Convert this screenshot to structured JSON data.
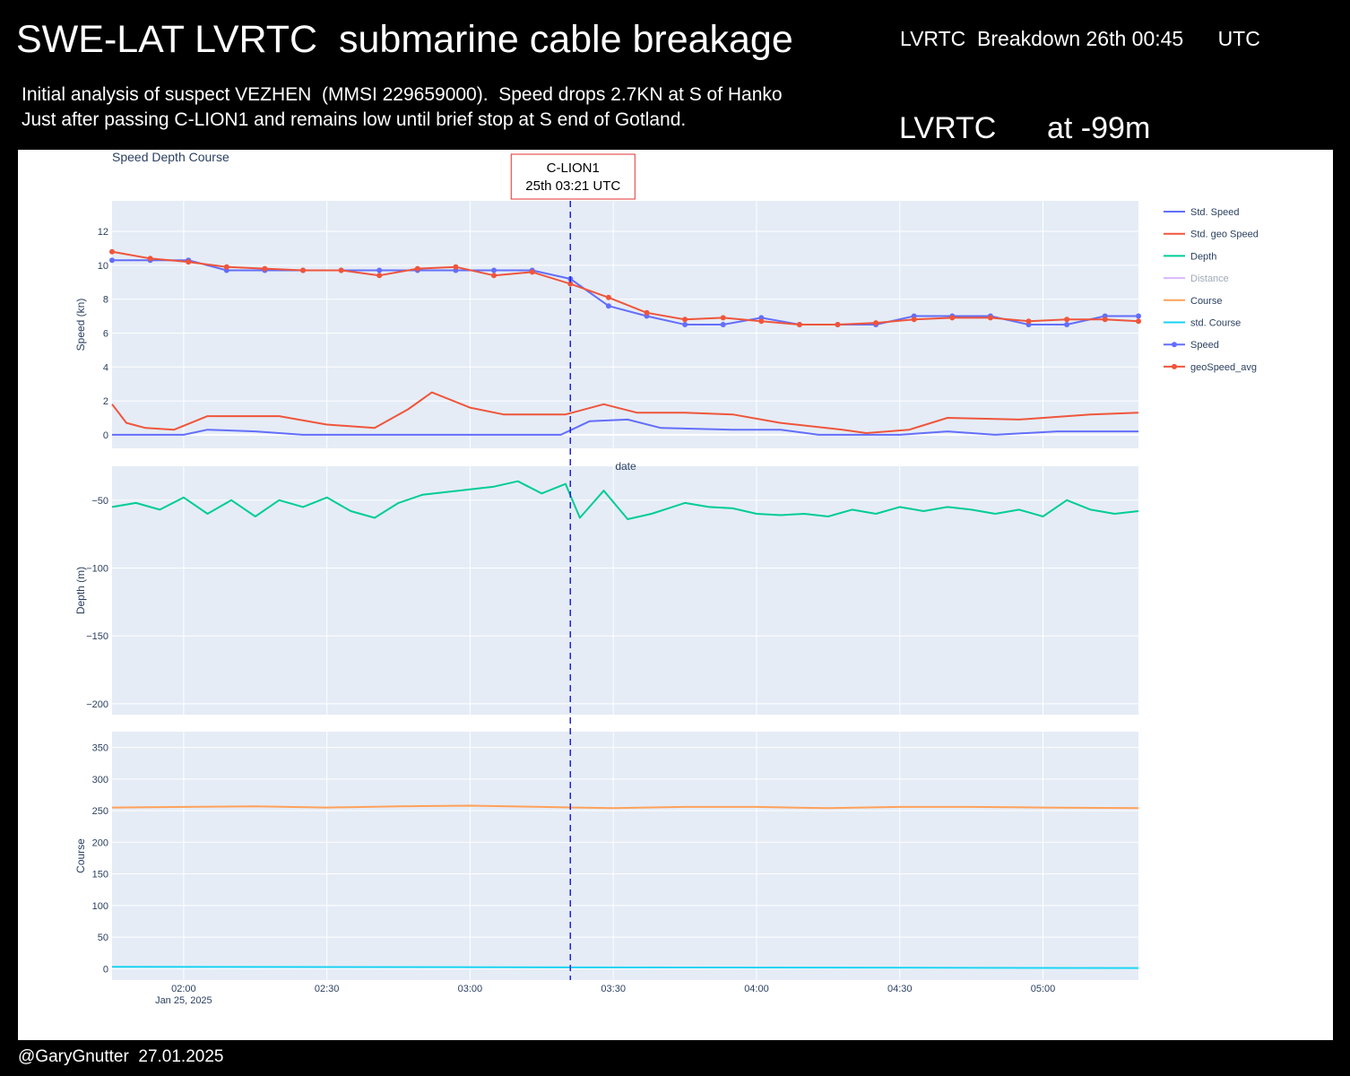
{
  "header": {
    "title": "SWE-LAT LVRTC  submarine cable breakage",
    "breakdown": "LVRTC  Breakdown 26th 00:45      UTC",
    "line1": "Initial analysis of suspect VEZHEN  (MMSI 229659000).  Speed drops 2.7KN at S of Hanko",
    "line2": "Just after passing C-LION1 and remains low until brief stop at S end of Gotland.",
    "depth_note": "LVRTC      at -99m",
    "footer": "@GaryGnutter  27.01.2025"
  },
  "colors": {
    "speed": "#636efa",
    "geo": "#ef553b",
    "depth": "#00cc96",
    "distance": "#ab63fa",
    "course": "#ffa15a",
    "std_course": "#19d3f3",
    "plot_bg": "#e5ecf6",
    "marker": "#2222dd"
  },
  "chart_data": {
    "type": "line",
    "title": "Speed Depth Course",
    "x_axis_title": "date",
    "x_ticks": [
      "02:00",
      "02:30",
      "03:00",
      "03:30",
      "04:00",
      "04:30",
      "05:00"
    ],
    "x_tick_sub": "Jan 25, 2025",
    "x_range_min": [
      105,
      320
    ],
    "annotation": {
      "line1": "C-LION1",
      "line2": "25th 03:21 UTC",
      "x_min": 201
    },
    "panels": {
      "speed": {
        "ylabel": "Speed (kn)",
        "ylim": [
          -0.8,
          13.8
        ],
        "ticks": [
          0,
          2,
          4,
          6,
          8,
          10,
          12
        ]
      },
      "depth": {
        "ylabel": "Depth (m)",
        "ylim": [
          -208,
          -25
        ],
        "ticks": [
          -50,
          -100,
          -150,
          -200
        ]
      },
      "course": {
        "ylabel": "Course",
        "ylim": [
          -18,
          375
        ],
        "ticks": [
          0,
          50,
          100,
          150,
          200,
          250,
          300,
          350
        ]
      }
    },
    "legend": [
      "Std. Speed",
      "Std. geo Speed",
      "Depth",
      "Distance",
      "Course",
      "std. Course",
      "Speed",
      "geoSpeed_avg"
    ],
    "series": {
      "speed": {
        "x": [
          105,
          113,
          121,
          129,
          137,
          145,
          153,
          161,
          169,
          177,
          185,
          193,
          201,
          209,
          217,
          225,
          233,
          241,
          249,
          257,
          265,
          273,
          281,
          289,
          297,
          305,
          313,
          320
        ],
        "y": [
          10.3,
          10.3,
          10.3,
          9.7,
          9.7,
          9.7,
          9.7,
          9.7,
          9.7,
          9.7,
          9.7,
          9.7,
          9.2,
          7.6,
          7.0,
          6.5,
          6.5,
          6.9,
          6.5,
          6.5,
          6.5,
          7.0,
          7.0,
          7.0,
          6.5,
          6.5,
          7.0,
          7.0
        ]
      },
      "geo": {
        "x": [
          105,
          113,
          121,
          129,
          137,
          145,
          153,
          161,
          169,
          177,
          185,
          193,
          201,
          209,
          217,
          225,
          233,
          241,
          249,
          257,
          265,
          273,
          281,
          289,
          297,
          305,
          313,
          320
        ],
        "y": [
          10.8,
          10.4,
          10.2,
          9.9,
          9.8,
          9.7,
          9.7,
          9.4,
          9.8,
          9.9,
          9.4,
          9.6,
          8.9,
          8.1,
          7.2,
          6.8,
          6.9,
          6.7,
          6.5,
          6.5,
          6.6,
          6.8,
          6.9,
          6.9,
          6.7,
          6.8,
          6.8,
          6.7
        ]
      },
      "std_speed": {
        "x": [
          105,
          120,
          125,
          135,
          145,
          165,
          190,
          199,
          205,
          213,
          220,
          235,
          245,
          253,
          270,
          280,
          290,
          303,
          313,
          320
        ],
        "y": [
          0,
          0,
          0.3,
          0.2,
          0,
          0,
          0,
          0,
          0.8,
          0.9,
          0.4,
          0.3,
          0.3,
          0,
          0,
          0.2,
          0,
          0.2,
          0.2,
          0.2
        ]
      },
      "std_geo": {
        "x": [
          105,
          108,
          112,
          118,
          125,
          140,
          150,
          160,
          167,
          172,
          180,
          187,
          195,
          200,
          208,
          215,
          225,
          235,
          245,
          258,
          263,
          272,
          280,
          295,
          310,
          320
        ],
        "y": [
          1.8,
          0.7,
          0.4,
          0.3,
          1.1,
          1.1,
          0.6,
          0.4,
          1.5,
          2.5,
          1.6,
          1.2,
          1.2,
          1.2,
          1.8,
          1.3,
          1.3,
          1.2,
          0.7,
          0.3,
          0.1,
          0.3,
          1.0,
          0.9,
          1.2,
          1.3
        ]
      },
      "depth": {
        "x": [
          105,
          110,
          115,
          120,
          125,
          130,
          135,
          140,
          145,
          150,
          155,
          160,
          165,
          170,
          175,
          180,
          185,
          190,
          195,
          200,
          203,
          208,
          213,
          218,
          225,
          230,
          235,
          240,
          245,
          250,
          255,
          260,
          265,
          270,
          275,
          280,
          285,
          290,
          295,
          300,
          305,
          310,
          315,
          320
        ],
        "y": [
          -55,
          -52,
          -57,
          -48,
          -60,
          -50,
          -62,
          -50,
          -55,
          -48,
          -58,
          -63,
          -52,
          -46,
          -44,
          -42,
          -40,
          -36,
          -45,
          -38,
          -63,
          -43,
          -64,
          -60,
          -52,
          -55,
          -56,
          -60,
          -61,
          -60,
          -62,
          -57,
          -60,
          -55,
          -58,
          -55,
          -57,
          -60,
          -57,
          -62,
          -50,
          -57,
          -60,
          -58
        ]
      },
      "course": {
        "x": [
          105,
          120,
          135,
          150,
          165,
          180,
          195,
          210,
          225,
          240,
          255,
          270,
          285,
          300,
          320
        ],
        "y": [
          255,
          256,
          257,
          255,
          257,
          258,
          256,
          254,
          256,
          256,
          254,
          256,
          256,
          255,
          254
        ]
      },
      "std_course": {
        "x": [
          105,
          320
        ],
        "y": [
          3,
          1
        ]
      }
    }
  }
}
